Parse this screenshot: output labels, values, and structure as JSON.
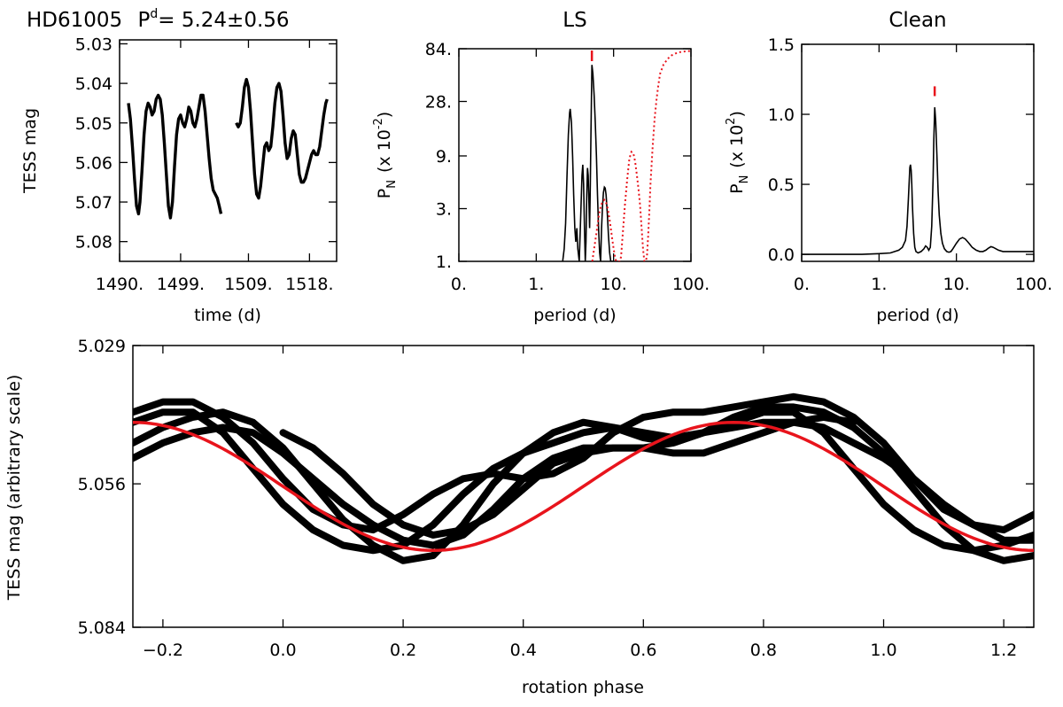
{
  "header": {
    "star": "HD61005",
    "period_prefix": "P",
    "period_sup": "d",
    "period_value": "= 5.24±0.56"
  },
  "colors": {
    "curve": "#000000",
    "model": "#e8141c",
    "marker": "#e8141c",
    "axes": "#000000"
  },
  "chart_data": [
    {
      "id": "lightcurve",
      "type": "line",
      "title": "",
      "xlabel": "time (d)",
      "ylabel": "TESS mag",
      "xlim": [
        1490.0,
        1522.0
      ],
      "ylim": [
        5.085,
        5.029
      ],
      "y_inverted": true,
      "xticks": [
        1490,
        1499,
        1509,
        1518
      ],
      "xtick_labels": [
        "1490.",
        "1499.",
        "1509.",
        "1518."
      ],
      "yticks": [
        5.03,
        5.04,
        5.05,
        5.06,
        5.07,
        5.08
      ],
      "ytick_labels": [
        "5.03",
        "5.04",
        "5.05",
        "5.06",
        "5.07",
        "5.08"
      ],
      "series": [
        {
          "x": [
            1491.3,
            1491.6,
            1491.9,
            1492.2,
            1492.5,
            1492.8,
            1493.0,
            1493.3,
            1493.6,
            1493.9,
            1494.2,
            1494.5,
            1494.8,
            1495.1,
            1495.4,
            1495.7,
            1496.0,
            1496.3,
            1496.6,
            1496.9,
            1497.2,
            1497.5,
            1497.8,
            1498.1,
            1498.4,
            1498.7,
            1499.0,
            1499.3,
            1499.6,
            1499.9,
            1500.2,
            1500.5,
            1500.8,
            1501.1,
            1501.4,
            1501.7,
            1502.0,
            1502.3,
            1502.6,
            1502.9,
            1503.2,
            1503.5,
            1503.8,
            1504.1,
            1504.4,
            1504.7,
            1504.95
          ],
          "y": [
            5.045,
            5.049,
            5.056,
            5.064,
            5.071,
            5.073,
            5.07,
            5.062,
            5.053,
            5.047,
            5.045,
            5.046,
            5.048,
            5.047,
            5.044,
            5.043,
            5.044,
            5.048,
            5.055,
            5.063,
            5.071,
            5.074,
            5.07,
            5.061,
            5.053,
            5.049,
            5.048,
            5.05,
            5.051,
            5.049,
            5.046,
            5.047,
            5.05,
            5.051,
            5.049,
            5.046,
            5.043,
            5.043,
            5.047,
            5.053,
            5.059,
            5.064,
            5.067,
            5.068,
            5.069,
            5.071,
            5.073
          ]
        },
        {
          "x": [
            1507.2,
            1507.5,
            1507.8,
            1508.1,
            1508.4,
            1508.7,
            1509.0,
            1509.3,
            1509.6,
            1509.9,
            1510.2,
            1510.5,
            1510.8,
            1511.1,
            1511.4,
            1511.7,
            1512.0,
            1512.3,
            1512.6,
            1512.9,
            1513.2,
            1513.5,
            1513.8,
            1514.1,
            1514.4,
            1514.7,
            1515.0,
            1515.3,
            1515.6,
            1515.9,
            1516.2,
            1516.5,
            1516.8,
            1517.1,
            1517.4,
            1517.7,
            1518.0,
            1518.3,
            1518.6,
            1518.9,
            1519.2,
            1519.5,
            1519.8,
            1520.1,
            1520.4,
            1520.6
          ],
          "y": [
            5.05,
            5.051,
            5.05,
            5.046,
            5.041,
            5.039,
            5.041,
            5.047,
            5.055,
            5.063,
            5.068,
            5.069,
            5.066,
            5.061,
            5.056,
            5.055,
            5.057,
            5.056,
            5.051,
            5.045,
            5.041,
            5.04,
            5.042,
            5.048,
            5.055,
            5.059,
            5.058,
            5.054,
            5.052,
            5.053,
            5.058,
            5.063,
            5.065,
            5.065,
            5.064,
            5.062,
            5.06,
            5.058,
            5.057,
            5.058,
            5.058,
            5.056,
            5.052,
            5.048,
            5.045,
            5.044
          ]
        }
      ]
    },
    {
      "id": "ls",
      "type": "line",
      "title": "LS",
      "xlabel": "period (d)",
      "ylabel": "P",
      "ylabel_sub": "N",
      "ylabel_rest": "(x 10",
      "ylabel_sup": "-2",
      "ylabel_close": ")",
      "x_log": true,
      "y_log": true,
      "xlim": [
        0.1,
        100
      ],
      "ylim": [
        1,
        84
      ],
      "xticks": [
        0.1,
        1,
        10,
        100
      ],
      "xtick_labels": [
        "0.",
        "1.",
        "10.",
        "100."
      ],
      "yticks": [
        1,
        3,
        9,
        28,
        84
      ],
      "ytick_labels": [
        "1.",
        "3.",
        "9.",
        "28.",
        "84."
      ],
      "peak_period": 5.24,
      "series": [
        {
          "style": "solid",
          "x": [
            2.2,
            2.3,
            2.4,
            2.5,
            2.6,
            2.7,
            2.75,
            2.85,
            2.95,
            3.05,
            3.15,
            3.25,
            3.35,
            3.45,
            3.6,
            3.75,
            3.9,
            4.0,
            4.1,
            4.2,
            4.3,
            4.4,
            4.5,
            4.6,
            4.7,
            4.8,
            4.9,
            5.0,
            5.1,
            5.24,
            5.4,
            5.6,
            5.8,
            6.0,
            6.2,
            6.4,
            6.6,
            6.8,
            7.0,
            7.2,
            7.4,
            7.6,
            7.8,
            8.0,
            8.3,
            8.6,
            8.9,
            9.2,
            9.5,
            9.8,
            10.1
          ],
          "y": [
            1,
            1.3,
            2.2,
            6,
            14,
            22,
            24,
            18,
            9,
            4,
            2,
            1.5,
            2,
            1.3,
            1,
            2.5,
            6,
            7.5,
            5,
            2,
            1,
            1.5,
            4,
            7,
            6,
            3.5,
            2,
            5,
            14,
            60,
            50,
            32,
            18,
            9,
            4,
            2,
            1.2,
            1,
            2,
            3.2,
            4.2,
            4.7,
            4.6,
            4,
            2.7,
            1.7,
            1.2,
            1,
            1,
            1,
            1
          ]
        },
        {
          "style": "dotted",
          "x": [
            5.3,
            5.6,
            6.0,
            6.4,
            6.8,
            7.2,
            7.6,
            8.0,
            8.4,
            8.8,
            9.2,
            9.6,
            10.0,
            10.4,
            10.8,
            11.2,
            11.6,
            12.0,
            12.5,
            13,
            14,
            15,
            16,
            17,
            18,
            19,
            20,
            21,
            22,
            23,
            24,
            25,
            26,
            27,
            28,
            29,
            30,
            32,
            34,
            36,
            38,
            40,
            44,
            50,
            56,
            63,
            70,
            80,
            90,
            100
          ],
          "y": [
            1,
            1.3,
            1.8,
            2.5,
            3.1,
            3.5,
            3.6,
            3.4,
            3.0,
            2.5,
            2.0,
            1.6,
            1.3,
            1.1,
            1.0,
            1.0,
            1.0,
            1.0,
            1.1,
            1.6,
            3.2,
            5.5,
            8.5,
            9.8,
            9.5,
            8,
            6,
            4.5,
            3.2,
            2,
            1.3,
            1,
            1,
            1.1,
            1.7,
            2.8,
            5,
            11,
            20,
            30,
            40,
            50,
            60,
            68,
            73,
            76,
            78,
            79,
            80,
            80
          ]
        }
      ]
    },
    {
      "id": "clean",
      "type": "line",
      "title": "Clean",
      "xlabel": "period (d)",
      "ylabel": "P",
      "ylabel_sub": "N",
      "ylabel_rest": "(x 10",
      "ylabel_sup": "2",
      "ylabel_close": ")",
      "x_log": true,
      "xlim": [
        0.1,
        100
      ],
      "ylim": [
        -0.05,
        1.5
      ],
      "xticks": [
        0.1,
        1,
        10,
        100
      ],
      "xtick_labels": [
        "0.",
        "1.",
        "10.",
        "100."
      ],
      "yticks": [
        0.0,
        0.5,
        1.0,
        1.5
      ],
      "ytick_labels": [
        "0.0",
        "0.5",
        "1.0",
        "1.5"
      ],
      "peak_period": 5.24,
      "series": [
        {
          "style": "solid",
          "x": [
            0.1,
            0.3,
            0.6,
            1.0,
            1.4,
            1.8,
            2.0,
            2.2,
            2.3,
            2.4,
            2.5,
            2.55,
            2.6,
            2.65,
            2.7,
            2.8,
            2.9,
            3.0,
            3.2,
            3.5,
            3.8,
            4.0,
            4.2,
            4.4,
            4.6,
            4.8,
            5.0,
            5.1,
            5.24,
            5.4,
            5.6,
            5.8,
            6.0,
            6.3,
            6.6,
            7.0,
            7.5,
            8.0,
            8.5,
            9.0,
            10,
            11,
            12,
            13,
            14,
            15,
            16,
            18,
            20,
            22,
            24,
            26,
            28,
            30,
            35,
            40,
            50,
            60,
            80,
            100
          ],
          "y": [
            0,
            0,
            0,
            0.005,
            0.01,
            0.03,
            0.05,
            0.1,
            0.2,
            0.4,
            0.62,
            0.64,
            0.6,
            0.5,
            0.35,
            0.15,
            0.05,
            0.02,
            0.01,
            0.02,
            0.04,
            0.06,
            0.05,
            0.03,
            0.05,
            0.2,
            0.55,
            0.8,
            1.05,
            0.95,
            0.7,
            0.45,
            0.28,
            0.15,
            0.08,
            0.04,
            0.02,
            0.015,
            0.02,
            0.04,
            0.08,
            0.11,
            0.12,
            0.11,
            0.09,
            0.07,
            0.05,
            0.03,
            0.02,
            0.02,
            0.03,
            0.045,
            0.055,
            0.05,
            0.03,
            0.02,
            0.02,
            0.02,
            0.02,
            0.02
          ]
        }
      ]
    },
    {
      "id": "phased",
      "type": "scatter",
      "title": "",
      "xlabel": "rotation phase",
      "ylabel": "TESS mag (arbitrary scale)",
      "xlim": [
        -0.25,
        1.25
      ],
      "ylim": [
        5.084,
        5.029
      ],
      "y_inverted": true,
      "xticks": [
        -0.2,
        0.0,
        0.2,
        0.4,
        0.6,
        0.8,
        1.0,
        1.2
      ],
      "xtick_labels": [
        "−0.2",
        "0.0",
        "0.2",
        "0.4",
        "0.6",
        "0.8",
        "1.0",
        "1.2"
      ],
      "yticks": [
        5.029,
        5.056,
        5.084
      ],
      "ytick_labels": [
        "5.029",
        "5.056",
        "5.084"
      ],
      "model": {
        "mean": 5.0565,
        "amplitude": 0.0125,
        "phase_of_min": 0.25
      },
      "cycles": [
        {
          "phase": [
            -0.25,
            -0.2,
            -0.15,
            -0.1,
            -0.05,
            0.0,
            0.05,
            0.1,
            0.15,
            0.2,
            0.25,
            0.3,
            0.35,
            0.4,
            0.45,
            0.5,
            0.55,
            0.6,
            0.65,
            0.7,
            0.75,
            0.8,
            0.85,
            0.9,
            0.95,
            1.0,
            1.05,
            1.1,
            1.15,
            1.2,
            1.25
          ],
          "mag": [
            5.042,
            5.04,
            5.04,
            5.043,
            5.048,
            5.055,
            5.061,
            5.064,
            5.065,
            5.062,
            5.058,
            5.055,
            5.054,
            5.055,
            5.054,
            5.051,
            5.046,
            5.043,
            5.042,
            5.042,
            5.041,
            5.04,
            5.039,
            5.04,
            5.043,
            5.048,
            5.055,
            5.061,
            5.064,
            5.065,
            5.062
          ]
        },
        {
          "phase": [
            -0.25,
            -0.2,
            -0.15,
            -0.1,
            -0.05,
            0.0,
            0.05,
            0.1,
            0.15,
            0.2,
            0.25,
            0.3,
            0.35,
            0.4,
            0.45,
            0.5,
            0.55,
            0.6,
            0.65,
            0.7,
            0.75,
            0.8,
            0.85,
            0.9,
            0.95,
            1.0,
            1.05,
            1.1,
            1.15,
            1.2,
            1.25
          ],
          "mag": [
            5.044,
            5.042,
            5.042,
            5.046,
            5.053,
            5.06,
            5.065,
            5.068,
            5.069,
            5.068,
            5.064,
            5.058,
            5.053,
            5.05,
            5.048,
            5.046,
            5.045,
            5.046,
            5.047,
            5.046,
            5.044,
            5.042,
            5.042,
            5.046,
            5.053,
            5.06,
            5.065,
            5.068,
            5.069,
            5.068,
            5.066
          ]
        },
        {
          "phase": [
            -0.25,
            -0.2,
            -0.15,
            -0.1,
            -0.05,
            0.0,
            0.05,
            0.1,
            0.15,
            0.2,
            0.25,
            0.3,
            0.35,
            0.4,
            0.45,
            0.5,
            0.55,
            0.6,
            0.65,
            0.7,
            0.75,
            0.8,
            0.85,
            0.9,
            0.95,
            1.0,
            1.05,
            1.1,
            1.15,
            1.2,
            1.25
          ],
          "mag": [
            5.048,
            5.045,
            5.043,
            5.042,
            5.044,
            5.049,
            5.056,
            5.063,
            5.068,
            5.071,
            5.07,
            5.064,
            5.056,
            5.05,
            5.046,
            5.044,
            5.045,
            5.047,
            5.048,
            5.046,
            5.043,
            5.041,
            5.041,
            5.042,
            5.045,
            5.05,
            5.057,
            5.064,
            5.069,
            5.071,
            5.07
          ]
        },
        {
          "phase": [
            -0.25,
            -0.2,
            -0.15,
            -0.1,
            -0.05,
            0.0,
            0.05,
            0.1,
            0.15,
            0.2,
            0.25,
            0.3,
            0.35,
            0.4,
            0.45,
            0.5,
            0.55,
            0.6,
            0.65,
            0.7,
            0.75,
            0.8,
            0.85,
            0.9,
            0.95,
            1.0,
            1.05,
            1.1,
            1.15,
            1.2,
            1.25
          ],
          "mag": [
            5.051,
            5.048,
            5.046,
            5.045,
            5.046,
            5.05,
            5.055,
            5.06,
            5.064,
            5.067,
            5.068,
            5.066,
            5.061,
            5.055,
            5.051,
            5.049,
            5.049,
            5.049,
            5.048,
            5.046,
            5.045,
            5.044,
            5.044,
            5.045,
            5.048,
            5.051,
            5.055,
            5.06,
            5.064,
            5.067,
            5.067
          ]
        },
        {
          "phase": [
            0.0,
            0.05,
            0.1,
            0.15,
            0.2,
            0.25,
            0.3,
            0.35,
            0.4,
            0.45,
            0.5,
            0.55,
            0.6,
            0.65,
            0.7,
            0.75,
            0.8,
            0.85,
            0.9,
            0.95
          ],
          "mag": [
            5.046,
            5.049,
            5.054,
            5.06,
            5.064,
            5.066,
            5.065,
            5.062,
            5.057,
            5.052,
            5.05,
            5.049,
            5.049,
            5.05,
            5.05,
            5.048,
            5.046,
            5.044,
            5.043,
            5.044
          ]
        }
      ]
    }
  ]
}
